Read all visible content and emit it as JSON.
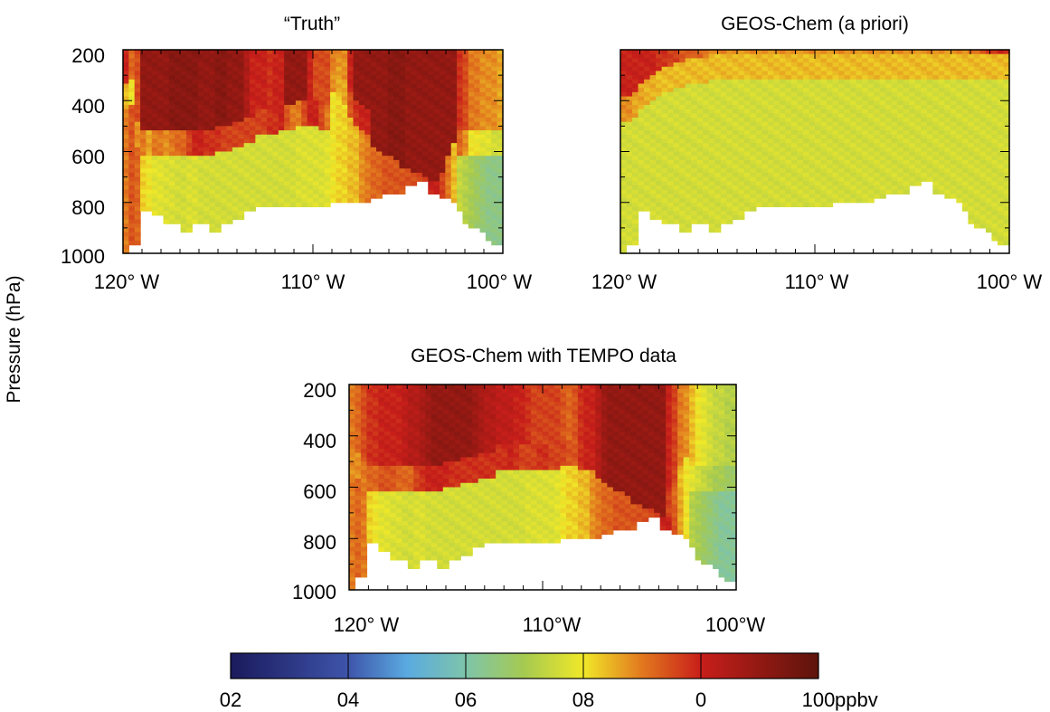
{
  "figure": {
    "ylabel": "Pressure (hPa)"
  },
  "chart_data": [
    {
      "type": "heatmap",
      "title": "“Truth”",
      "x_ticks": [
        "120° W",
        "110° W",
        "100° W"
      ],
      "xlim": [
        -120,
        -100
      ],
      "y_ticks": [
        "200",
        "400",
        "600",
        "800",
        "1000"
      ],
      "ylim": [
        1000,
        200
      ],
      "surface_pressure_hPa": [
        1000,
        960,
        960,
        830,
        830,
        850,
        850,
        880,
        880,
        880,
        920,
        920,
        880,
        880,
        880,
        920,
        920,
        880,
        880,
        860,
        860,
        830,
        830,
        820,
        820,
        820,
        820,
        820,
        820,
        820,
        810,
        810,
        810,
        810,
        810,
        810,
        800,
        800,
        800,
        800,
        800,
        800,
        800,
        790,
        790,
        770,
        770,
        760,
        760,
        740,
        740,
        720,
        720,
        760,
        760,
        780,
        790,
        800,
        840,
        880,
        900,
        900,
        920,
        950,
        960,
        960
      ],
      "profiles": {
        "upper_ppbv": [
          100,
          92,
          95,
          110,
          110,
          110,
          110,
          110,
          112,
          112,
          112,
          112,
          112,
          110,
          110,
          110,
          112,
          112,
          110,
          110,
          110,
          105,
          100,
          100,
          100,
          98,
          100,
          100,
          110,
          110,
          110,
          110,
          100,
          95,
          95,
          95,
          90,
          88,
          88,
          100,
          110,
          110,
          110,
          110,
          110,
          110,
          112,
          112,
          112,
          110,
          110,
          110,
          110,
          110,
          110,
          110,
          110,
          110,
          98,
          95,
          90,
          90,
          88,
          88,
          88,
          86
        ],
        "mid_ppbv": [
          84,
          80,
          88,
          90,
          86,
          90,
          90,
          88,
          90,
          92,
          92,
          96,
          100,
          100,
          98,
          98,
          98,
          96,
          96,
          96,
          96,
          96,
          96,
          96,
          96,
          98,
          98,
          100,
          94,
          90,
          90,
          95,
          100,
          100,
          95,
          90,
          88,
          86,
          86,
          94,
          98,
          100,
          100,
          110,
          110,
          110,
          112,
          112,
          112,
          110,
          110,
          110,
          110,
          110,
          110,
          110,
          110,
          110,
          92,
          88,
          80,
          80,
          78,
          78,
          76,
          76
        ],
        "low_ppbv": [
          90,
          94,
          92,
          82,
          80,
          78,
          78,
          77,
          77,
          76,
          76,
          77,
          77,
          76,
          76,
          76,
          76,
          76,
          76,
          76,
          76,
          76,
          76,
          76,
          76,
          76,
          76,
          76,
          76,
          76,
          77,
          77,
          77,
          77,
          77,
          78,
          80,
          82,
          82,
          84,
          84,
          88,
          90,
          92,
          92,
          94,
          94,
          94,
          94,
          95,
          95,
          95,
          95,
          100,
          100,
          96,
          90,
          84,
          74,
          72,
          70,
          68,
          66,
          64,
          64,
          64
        ],
        "boundary_top_hPa": [
          380,
          360,
          520,
          560,
          560,
          560,
          560,
          560,
          560,
          560,
          560,
          560,
          560,
          560,
          560,
          560,
          540,
          540,
          540,
          520,
          520,
          500,
          500,
          480,
          480,
          480,
          480,
          460,
          460,
          460,
          440,
          440,
          440,
          440,
          460,
          460,
          300,
          300,
          360,
          400,
          440,
          460,
          480,
          520,
          540,
          560,
          560,
          580,
          600,
          600,
          620,
          620,
          640,
          650,
          660,
          620,
          560,
          500,
          560,
          560,
          560,
          560,
          560,
          560,
          560,
          560
        ]
      }
    },
    {
      "type": "heatmap",
      "title": "GEOS-Chem (a priori)",
      "x_ticks": [
        "120° W",
        "110° W",
        "100° W"
      ],
      "xlim": [
        -120,
        -100
      ],
      "surface_pressure_hPa": [
        1000,
        960,
        960,
        840,
        840,
        860,
        860,
        880,
        880,
        880,
        920,
        920,
        880,
        880,
        880,
        920,
        920,
        880,
        880,
        860,
        860,
        830,
        830,
        820,
        820,
        820,
        820,
        820,
        820,
        820,
        810,
        810,
        810,
        810,
        810,
        810,
        800,
        800,
        800,
        800,
        800,
        800,
        800,
        790,
        790,
        770,
        770,
        760,
        760,
        740,
        740,
        720,
        720,
        760,
        760,
        780,
        790,
        800,
        840,
        880,
        900,
        900,
        920,
        950,
        960,
        960
      ],
      "profiles": {
        "upper_ppbv": [
          100,
          100,
          100,
          100,
          100,
          100,
          98,
          98,
          96,
          96,
          94,
          94,
          92,
          92,
          90,
          90,
          89,
          89,
          88,
          88,
          88,
          88,
          88,
          88,
          88,
          88,
          88,
          88,
          88,
          88,
          88,
          88,
          88,
          88,
          88,
          88,
          88,
          88,
          88,
          88,
          88,
          88,
          88,
          88,
          88,
          88,
          88,
          88,
          88,
          88,
          88,
          88,
          88,
          88,
          88,
          88,
          88,
          88,
          88,
          90,
          92,
          94,
          96,
          98,
          100,
          100
        ],
        "mid_ppbv": [
          88,
          88,
          86,
          86,
          85,
          85,
          84,
          84,
          84,
          84,
          84,
          84,
          84,
          84,
          84,
          84,
          84,
          84,
          84,
          84,
          84,
          84,
          84,
          84,
          84,
          84,
          84,
          84,
          84,
          84,
          84,
          84,
          84,
          84,
          84,
          84,
          84,
          84,
          84,
          84,
          84,
          84,
          84,
          84,
          84,
          84,
          84,
          84,
          84,
          84,
          84,
          84,
          84,
          84,
          84,
          84,
          84,
          84,
          84,
          84,
          84,
          84,
          84,
          84,
          84,
          84
        ],
        "low_ppbv": [
          76,
          76,
          76,
          76,
          76,
          76,
          76,
          76,
          76,
          76,
          76,
          76,
          76,
          76,
          76,
          76,
          76,
          76,
          76,
          76,
          76,
          76,
          76,
          76,
          76,
          76,
          76,
          76,
          76,
          76,
          76,
          76,
          76,
          76,
          76,
          76,
          76,
          76,
          76,
          76,
          76,
          76,
          76,
          76,
          76,
          76,
          76,
          76,
          76,
          76,
          76,
          76,
          76,
          76,
          76,
          76,
          76,
          76,
          76,
          76,
          76,
          76,
          76,
          76,
          76,
          76
        ],
        "boundary_top_hPa": [
          420,
          420,
          400,
          380,
          360,
          340,
          320,
          300,
          300,
          290,
          290,
          280,
          280,
          270,
          270,
          260,
          260,
          260,
          260,
          260,
          260,
          260,
          260,
          260,
          260,
          260,
          260,
          260,
          260,
          260,
          260,
          260,
          260,
          260,
          260,
          260,
          260,
          260,
          260,
          260,
          260,
          260,
          260,
          260,
          260,
          260,
          260,
          260,
          260,
          260,
          260,
          260,
          260,
          260,
          260,
          260,
          260,
          260,
          260,
          260,
          260,
          260,
          260,
          260,
          260,
          260
        ]
      }
    },
    {
      "type": "heatmap",
      "title": "GEOS-Chem with TEMPO data",
      "x_ticks": [
        "120° W",
        "110°W",
        "100°W"
      ],
      "xlim": [
        -120,
        -100
      ],
      "y_ticks": [
        "200",
        "400",
        "600",
        "800",
        "1000"
      ],
      "ylim": [
        1000,
        200
      ],
      "surface_pressure_hPa": [
        1000,
        950,
        950,
        820,
        820,
        850,
        850,
        880,
        880,
        880,
        920,
        920,
        880,
        880,
        880,
        920,
        920,
        880,
        880,
        860,
        860,
        830,
        830,
        820,
        820,
        820,
        820,
        820,
        820,
        820,
        810,
        810,
        810,
        810,
        810,
        810,
        800,
        800,
        800,
        800,
        800,
        800,
        800,
        790,
        790,
        770,
        770,
        760,
        760,
        740,
        740,
        720,
        720,
        760,
        760,
        780,
        790,
        800,
        840,
        880,
        900,
        900,
        920,
        950,
        960,
        960
      ],
      "profiles": {
        "upper_ppbv": [
          90,
          92,
          95,
          98,
          98,
          100,
          100,
          100,
          100,
          102,
          104,
          104,
          106,
          108,
          110,
          110,
          110,
          110,
          110,
          110,
          110,
          108,
          106,
          104,
          104,
          102,
          102,
          102,
          100,
          100,
          98,
          96,
          96,
          96,
          96,
          96,
          94,
          92,
          94,
          98,
          100,
          100,
          104,
          108,
          110,
          110,
          110,
          110,
          110,
          110,
          110,
          110,
          110,
          110,
          100,
          96,
          90,
          88,
          84,
          80,
          78,
          76,
          74,
          74,
          72,
          72
        ],
        "mid_ppbv": [
          88,
          88,
          90,
          92,
          92,
          94,
          94,
          94,
          92,
          92,
          92,
          96,
          98,
          100,
          100,
          100,
          100,
          98,
          98,
          98,
          98,
          98,
          98,
          98,
          98,
          98,
          98,
          100,
          98,
          96,
          96,
          96,
          98,
          98,
          96,
          96,
          96,
          94,
          94,
          98,
          100,
          100,
          104,
          108,
          110,
          110,
          110,
          110,
          110,
          110,
          110,
          110,
          110,
          110,
          96,
          92,
          84,
          80,
          78,
          76,
          74,
          72,
          70,
          70,
          68,
          68
        ],
        "low_ppbv": [
          90,
          92,
          90,
          82,
          80,
          78,
          78,
          77,
          77,
          76,
          76,
          77,
          77,
          76,
          76,
          76,
          76,
          76,
          76,
          76,
          76,
          76,
          76,
          76,
          76,
          76,
          76,
          76,
          76,
          76,
          77,
          77,
          77,
          77,
          77,
          78,
          80,
          82,
          82,
          84,
          84,
          88,
          90,
          92,
          92,
          94,
          94,
          94,
          94,
          95,
          95,
          95,
          95,
          100,
          100,
          94,
          86,
          80,
          72,
          70,
          68,
          66,
          64,
          62,
          62,
          62
        ],
        "boundary_top_hPa": [
          500,
          500,
          540,
          560,
          560,
          560,
          560,
          560,
          560,
          560,
          560,
          560,
          560,
          560,
          560,
          560,
          540,
          540,
          540,
          520,
          520,
          520,
          500,
          500,
          500,
          480,
          480,
          480,
          480,
          480,
          480,
          480,
          480,
          480,
          480,
          480,
          460,
          460,
          460,
          480,
          480,
          480,
          500,
          520,
          540,
          560,
          560,
          580,
          600,
          600,
          620,
          620,
          640,
          650,
          660,
          620,
          560,
          520,
          560,
          560,
          560,
          560,
          560,
          560,
          560,
          560
        ]
      }
    },
    {
      "type": "colorbar",
      "ticks": [
        "02",
        "04",
        "06",
        "08",
        "0",
        "100"
      ],
      "unit": "ppbv",
      "range_ppbv": [
        20,
        120
      ]
    }
  ]
}
